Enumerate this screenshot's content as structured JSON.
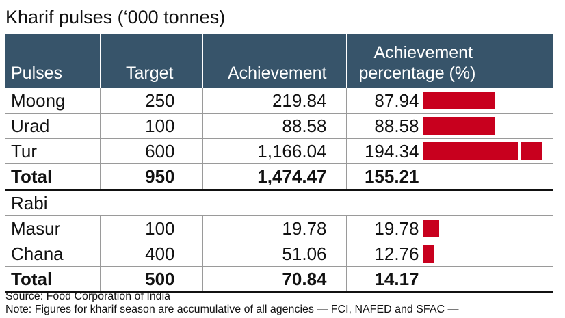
{
  "title": "Kharif pulses (‘000 tonnes)",
  "table": {
    "headers": {
      "pulses": "Pulses",
      "target": "Target",
      "achievement": "Achievement",
      "percentage_line1": "Achievement",
      "percentage_line2": "percentage (%)"
    },
    "kharif_rows": [
      {
        "name": "Moong",
        "target": "250",
        "achievement": "219.84",
        "percentage": "87.94",
        "pct_value": 87.94
      },
      {
        "name": "Urad",
        "target": "100",
        "achievement": "88.58",
        "percentage": "88.58",
        "pct_value": 88.58
      },
      {
        "name": "Tur",
        "target": "600",
        "achievement": "1,166.04",
        "percentage": "194.34",
        "pct_value": 194.34
      }
    ],
    "kharif_total": {
      "name": "Total",
      "target": "950",
      "achievement": "1,474.47",
      "percentage": "155.21"
    },
    "rabi_label": "Rabi",
    "rabi_rows": [
      {
        "name": "Masur",
        "target": "100",
        "achievement": "19.78",
        "percentage": "19.78",
        "pct_value": 19.78
      },
      {
        "name": "Chana",
        "target": "400",
        "achievement": "51.06",
        "percentage": "12.76",
        "pct_value": 12.76
      }
    ],
    "rabi_total": {
      "name": "Total",
      "target": "500",
      "achievement": "70.84",
      "percentage": "14.17"
    }
  },
  "bar_color": "#c8001e",
  "header_color": "#37546a",
  "source": "Source: Food Corporation of India",
  "note": "Note: Figures for kharif season are accumulative of all agencies — FCI, NAFED and SFAC —"
}
